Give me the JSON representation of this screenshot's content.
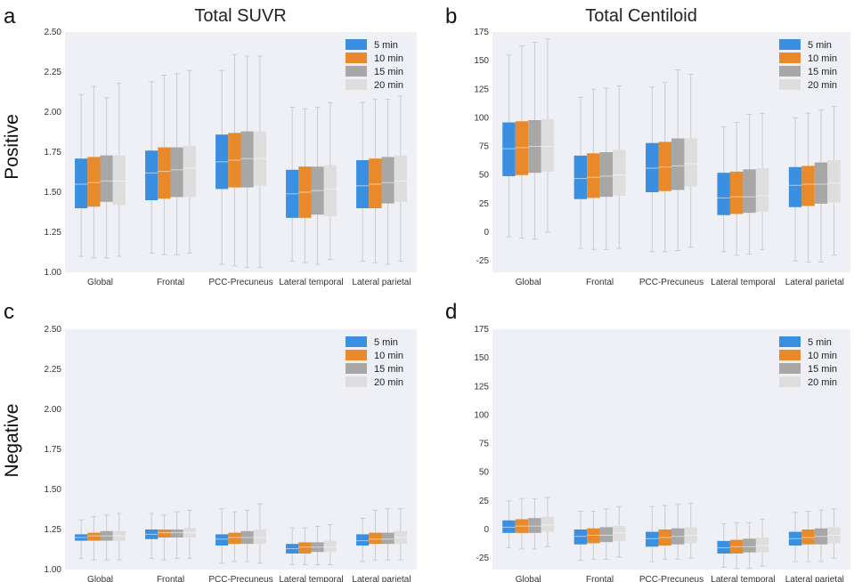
{
  "figure": {
    "col_titles": [
      "Total SUVR",
      "Total Centiloid"
    ],
    "row_labels": [
      "Positive",
      "Negative"
    ],
    "panel_letters": [
      "a",
      "b",
      "c",
      "d"
    ]
  },
  "colors": {
    "5 min": "#3b8fe0",
    "10 min": "#e8892a",
    "15 min": "#a7a7a7",
    "20 min": "#dedede",
    "plot_bg": "#eef0f5",
    "whisker": "#c9cbd1"
  },
  "chart_data": [
    {
      "panel": "a",
      "type": "box",
      "categories": [
        "Global",
        "Frontal",
        "PCC-Precuneus",
        "Lateral temporal",
        "Lateral parietal"
      ],
      "ylim": [
        1.0,
        2.5
      ],
      "yticks": [
        "1.00",
        "1.25",
        "1.50",
        "1.75",
        "2.00",
        "2.25",
        "2.50"
      ],
      "legend": [
        "5 min",
        "10 min",
        "15 min",
        "20 min"
      ],
      "legend_position": "top-right",
      "series": [
        {
          "name": "5 min",
          "boxes": [
            {
              "min": 1.1,
              "q1": 1.4,
              "median": 1.55,
              "q3": 1.71,
              "max": 2.11
            },
            {
              "min": 1.12,
              "q1": 1.45,
              "median": 1.62,
              "q3": 1.76,
              "max": 2.19
            },
            {
              "min": 1.05,
              "q1": 1.52,
              "median": 1.69,
              "q3": 1.86,
              "max": 2.26
            },
            {
              "min": 1.07,
              "q1": 1.34,
              "median": 1.49,
              "q3": 1.64,
              "max": 2.03
            },
            {
              "min": 1.07,
              "q1": 1.4,
              "median": 1.54,
              "q3": 1.7,
              "max": 2.06
            }
          ]
        },
        {
          "name": "10 min",
          "boxes": [
            {
              "min": 1.09,
              "q1": 1.41,
              "median": 1.56,
              "q3": 1.72,
              "max": 2.16
            },
            {
              "min": 1.11,
              "q1": 1.46,
              "median": 1.63,
              "q3": 1.78,
              "max": 2.23
            },
            {
              "min": 1.04,
              "q1": 1.53,
              "median": 1.7,
              "q3": 1.87,
              "max": 2.36
            },
            {
              "min": 1.06,
              "q1": 1.34,
              "median": 1.5,
              "q3": 1.66,
              "max": 2.02
            },
            {
              "min": 1.06,
              "q1": 1.4,
              "median": 1.55,
              "q3": 1.71,
              "max": 2.08
            }
          ]
        },
        {
          "name": "15 min",
          "boxes": [
            {
              "min": 1.09,
              "q1": 1.44,
              "median": 1.57,
              "q3": 1.73,
              "max": 2.09
            },
            {
              "min": 1.11,
              "q1": 1.47,
              "median": 1.64,
              "q3": 1.78,
              "max": 2.24
            },
            {
              "min": 1.03,
              "q1": 1.53,
              "median": 1.71,
              "q3": 1.88,
              "max": 2.35
            },
            {
              "min": 1.05,
              "q1": 1.36,
              "median": 1.51,
              "q3": 1.66,
              "max": 2.03
            },
            {
              "min": 1.05,
              "q1": 1.43,
              "median": 1.56,
              "q3": 1.72,
              "max": 2.08
            }
          ]
        },
        {
          "name": "20 min",
          "boxes": [
            {
              "min": 1.1,
              "q1": 1.42,
              "median": 1.57,
              "q3": 1.73,
              "max": 2.18
            },
            {
              "min": 1.12,
              "q1": 1.47,
              "median": 1.65,
              "q3": 1.79,
              "max": 2.26
            },
            {
              "min": 1.03,
              "q1": 1.54,
              "median": 1.71,
              "q3": 1.88,
              "max": 2.35
            },
            {
              "min": 1.08,
              "q1": 1.35,
              "median": 1.52,
              "q3": 1.67,
              "max": 2.06
            },
            {
              "min": 1.07,
              "q1": 1.44,
              "median": 1.57,
              "q3": 1.73,
              "max": 2.1
            }
          ]
        }
      ]
    },
    {
      "panel": "b",
      "type": "box",
      "categories": [
        "Global",
        "Frontal",
        "PCC-Precuneus",
        "Lateral temporal",
        "Lateral parietal"
      ],
      "ylim": [
        -35,
        175
      ],
      "yticks": [
        "-25",
        "0",
        "25",
        "50",
        "75",
        "100",
        "125",
        "150",
        "175"
      ],
      "legend": [
        "5 min",
        "10 min",
        "15 min",
        "20 min"
      ],
      "legend_position": "top-right",
      "series": [
        {
          "name": "5 min",
          "boxes": [
            {
              "min": -4,
              "q1": 49,
              "median": 73,
              "q3": 96,
              "max": 155
            },
            {
              "min": -14,
              "q1": 29,
              "median": 47,
              "q3": 67,
              "max": 118
            },
            {
              "min": -17,
              "q1": 35,
              "median": 56,
              "q3": 78,
              "max": 127
            },
            {
              "min": -17,
              "q1": 15,
              "median": 30,
              "q3": 52,
              "max": 92
            },
            {
              "min": -25,
              "q1": 22,
              "median": 41,
              "q3": 57,
              "max": 100
            }
          ]
        },
        {
          "name": "10 min",
          "boxes": [
            {
              "min": -5,
              "q1": 50,
              "median": 74,
              "q3": 97,
              "max": 163
            },
            {
              "min": -15,
              "q1": 30,
              "median": 48,
              "q3": 69,
              "max": 125
            },
            {
              "min": -17,
              "q1": 36,
              "median": 57,
              "q3": 79,
              "max": 131
            },
            {
              "min": -20,
              "q1": 16,
              "median": 31,
              "q3": 53,
              "max": 96
            },
            {
              "min": -26,
              "q1": 23,
              "median": 42,
              "q3": 58,
              "max": 104
            }
          ]
        },
        {
          "name": "15 min",
          "boxes": [
            {
              "min": -6,
              "q1": 52,
              "median": 75,
              "q3": 98,
              "max": 166
            },
            {
              "min": -15,
              "q1": 31,
              "median": 49,
              "q3": 70,
              "max": 126
            },
            {
              "min": -16,
              "q1": 37,
              "median": 58,
              "q3": 82,
              "max": 142
            },
            {
              "min": -19,
              "q1": 17,
              "median": 31,
              "q3": 55,
              "max": 103
            },
            {
              "min": -26,
              "q1": 25,
              "median": 42,
              "q3": 61,
              "max": 107
            }
          ]
        },
        {
          "name": "20 min",
          "boxes": [
            {
              "min": 0,
              "q1": 53,
              "median": 75,
              "q3": 99,
              "max": 169
            },
            {
              "min": -14,
              "q1": 32,
              "median": 50,
              "q3": 72,
              "max": 128
            },
            {
              "min": -13,
              "q1": 40,
              "median": 60,
              "q3": 82,
              "max": 138
            },
            {
              "min": -15,
              "q1": 18,
              "median": 32,
              "q3": 56,
              "max": 104
            },
            {
              "min": -20,
              "q1": 26,
              "median": 43,
              "q3": 63,
              "max": 110
            }
          ]
        }
      ]
    },
    {
      "panel": "c",
      "type": "box",
      "categories": [
        "Global",
        "Frontal",
        "PCC-Precuneus",
        "Lateral temporal",
        "Lateral parietal"
      ],
      "ylim": [
        1.0,
        2.5
      ],
      "yticks": [
        "1.00",
        "1.25",
        "1.50",
        "1.75",
        "2.00",
        "2.25",
        "2.50"
      ],
      "legend": [
        "5 min",
        "10 min",
        "15 min",
        "20 min"
      ],
      "legend_position": "top-right",
      "series": [
        {
          "name": "5 min",
          "boxes": [
            {
              "min": 1.07,
              "q1": 1.18,
              "median": 1.2,
              "q3": 1.22,
              "max": 1.31
            },
            {
              "min": 1.07,
              "q1": 1.19,
              "median": 1.22,
              "q3": 1.25,
              "max": 1.35
            },
            {
              "min": 1.04,
              "q1": 1.15,
              "median": 1.19,
              "q3": 1.22,
              "max": 1.38
            },
            {
              "min": 1.03,
              "q1": 1.1,
              "median": 1.13,
              "q3": 1.16,
              "max": 1.26
            },
            {
              "min": 1.05,
              "q1": 1.15,
              "median": 1.18,
              "q3": 1.22,
              "max": 1.32
            }
          ]
        },
        {
          "name": "10 min",
          "boxes": [
            {
              "min": 1.06,
              "q1": 1.18,
              "median": 1.21,
              "q3": 1.23,
              "max": 1.33
            },
            {
              "min": 1.06,
              "q1": 1.2,
              "median": 1.23,
              "q3": 1.25,
              "max": 1.34
            },
            {
              "min": 1.05,
              "q1": 1.16,
              "median": 1.2,
              "q3": 1.23,
              "max": 1.36
            },
            {
              "min": 1.03,
              "q1": 1.1,
              "median": 1.14,
              "q3": 1.17,
              "max": 1.26
            },
            {
              "min": 1.06,
              "q1": 1.16,
              "median": 1.19,
              "q3": 1.23,
              "max": 1.37
            }
          ]
        },
        {
          "name": "15 min",
          "boxes": [
            {
              "min": 1.06,
              "q1": 1.18,
              "median": 1.21,
              "q3": 1.24,
              "max": 1.34
            },
            {
              "min": 1.07,
              "q1": 1.2,
              "median": 1.23,
              "q3": 1.25,
              "max": 1.36
            },
            {
              "min": 1.05,
              "q1": 1.16,
              "median": 1.2,
              "q3": 1.24,
              "max": 1.37
            },
            {
              "min": 1.03,
              "q1": 1.11,
              "median": 1.14,
              "q3": 1.17,
              "max": 1.27
            },
            {
              "min": 1.06,
              "q1": 1.16,
              "median": 1.19,
              "q3": 1.23,
              "max": 1.38
            }
          ]
        },
        {
          "name": "20 min",
          "boxes": [
            {
              "min": 1.06,
              "q1": 1.18,
              "median": 1.21,
              "q3": 1.24,
              "max": 1.35
            },
            {
              "min": 1.07,
              "q1": 1.2,
              "median": 1.23,
              "q3": 1.26,
              "max": 1.37
            },
            {
              "min": 1.04,
              "q1": 1.16,
              "median": 1.2,
              "q3": 1.25,
              "max": 1.41
            },
            {
              "min": 1.03,
              "q1": 1.11,
              "median": 1.14,
              "q3": 1.18,
              "max": 1.28
            },
            {
              "min": 1.06,
              "q1": 1.16,
              "median": 1.2,
              "q3": 1.24,
              "max": 1.38
            }
          ]
        }
      ]
    },
    {
      "panel": "d",
      "type": "box",
      "categories": [
        "Global",
        "Frontal",
        "PCC-Precuneus",
        "Lateral temporal",
        "Lateral parietal"
      ],
      "ylim": [
        -35,
        175
      ],
      "yticks": [
        "-25",
        "0",
        "25",
        "50",
        "75",
        "100",
        "125",
        "150",
        "175"
      ],
      "legend": [
        "5 min",
        "10 min",
        "15 min",
        "20 min"
      ],
      "legend_position": "top-right",
      "series": [
        {
          "name": "5 min",
          "boxes": [
            {
              "min": -16,
              "q1": -3,
              "median": 2,
              "q3": 8,
              "max": 25
            },
            {
              "min": -27,
              "q1": -13,
              "median": -6,
              "q3": 0,
              "max": 16
            },
            {
              "min": -28,
              "q1": -15,
              "median": -8,
              "q3": -2,
              "max": 20
            },
            {
              "min": -33,
              "q1": -21,
              "median": -16,
              "q3": -10,
              "max": 5
            },
            {
              "min": -28,
              "q1": -14,
              "median": -8,
              "q3": -2,
              "max": 15
            }
          ]
        },
        {
          "name": "10 min",
          "boxes": [
            {
              "min": -17,
              "q1": -3,
              "median": 3,
              "q3": 9,
              "max": 27
            },
            {
              "min": -26,
              "q1": -12,
              "median": -5,
              "q3": 1,
              "max": 16
            },
            {
              "min": -26,
              "q1": -14,
              "median": -7,
              "q3": 0,
              "max": 21
            },
            {
              "min": -34,
              "q1": -21,
              "median": -15,
              "q3": -9,
              "max": 6
            },
            {
              "min": -28,
              "q1": -13,
              "median": -7,
              "q3": 0,
              "max": 16
            }
          ]
        },
        {
          "name": "15 min",
          "boxes": [
            {
              "min": -17,
              "q1": -3,
              "median": 3,
              "q3": 10,
              "max": 27
            },
            {
              "min": -26,
              "q1": -11,
              "median": -5,
              "q3": 2,
              "max": 18
            },
            {
              "min": -26,
              "q1": -13,
              "median": -6,
              "q3": 1,
              "max": 22
            },
            {
              "min": -34,
              "q1": -20,
              "median": -15,
              "q3": -8,
              "max": 6
            },
            {
              "min": -28,
              "q1": -13,
              "median": -6,
              "q3": 1,
              "max": 17
            }
          ]
        },
        {
          "name": "20 min",
          "boxes": [
            {
              "min": -15,
              "q1": -2,
              "median": 4,
              "q3": 11,
              "max": 28
            },
            {
              "min": -24,
              "q1": -10,
              "median": -3,
              "q3": 3,
              "max": 20
            },
            {
              "min": -25,
              "q1": -12,
              "median": -5,
              "q3": 2,
              "max": 23
            },
            {
              "min": -32,
              "q1": -20,
              "median": -14,
              "q3": -7,
              "max": 9
            },
            {
              "min": -25,
              "q1": -12,
              "median": -5,
              "q3": 2,
              "max": 18
            }
          ]
        }
      ]
    }
  ]
}
